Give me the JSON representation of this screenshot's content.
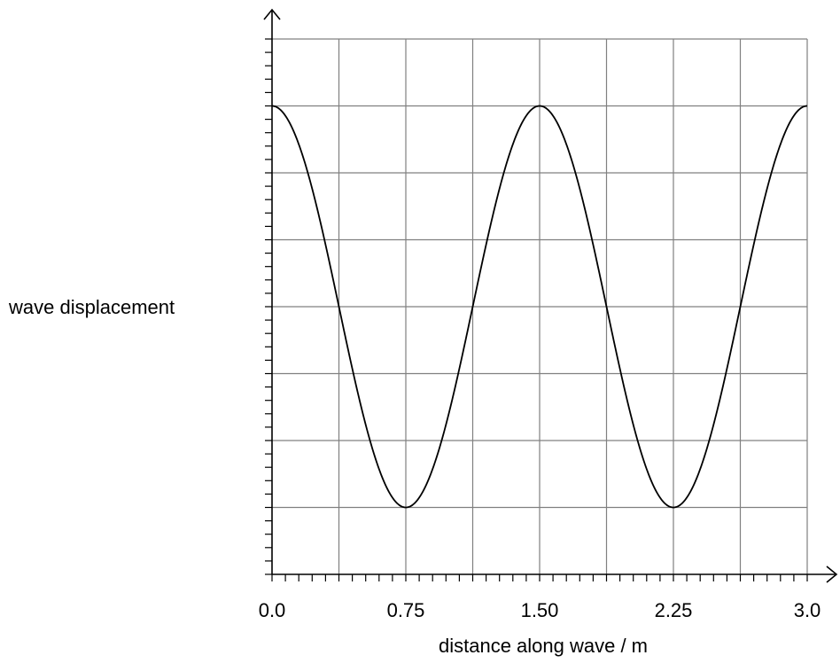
{
  "chart_data": {
    "type": "line",
    "xlabel": "distance along wave / m",
    "ylabel": "wave displacement",
    "x_tick_labels": [
      "0.0",
      "0.75",
      "1.50",
      "2.25",
      "3.0"
    ],
    "x_ticks": [
      0,
      0.75,
      1.5,
      2.25,
      3.0
    ],
    "xlim": [
      0,
      3.0
    ],
    "ylim": [
      -4,
      4
    ],
    "grid": true,
    "x_gridlines": [
      0,
      0.375,
      0.75,
      1.125,
      1.5,
      1.875,
      2.25,
      2.625,
      3.0
    ],
    "y_gridlines": [
      -3,
      -2,
      -1,
      0,
      1,
      2,
      3,
      4
    ],
    "series": [
      {
        "wavelength": 1.5,
        "amplitude": 3,
        "x": [
          0,
          0.375,
          0.75,
          1.125,
          1.5,
          1.875,
          2.25,
          2.625,
          3.0
        ],
        "y": [
          3,
          0,
          -3,
          0,
          3,
          0,
          -3,
          0,
          3
        ]
      }
    ],
    "line_color": "#000000",
    "grid_color": "#808080"
  }
}
